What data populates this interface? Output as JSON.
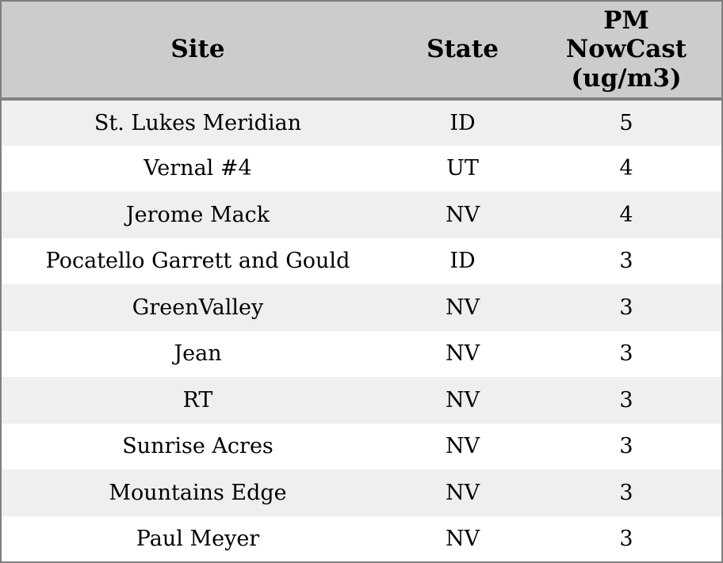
{
  "chart_data": {
    "type": "table",
    "columns": [
      "Site",
      "State",
      "PM NowCast (ug/m3)"
    ],
    "rows": [
      [
        "St. Lukes Meridian",
        "ID",
        5
      ],
      [
        "Vernal #4",
        "UT",
        4
      ],
      [
        "Jerome Mack",
        "NV",
        4
      ],
      [
        "Pocatello Garrett and Gould",
        "ID",
        3
      ],
      [
        "GreenValley",
        "NV",
        3
      ],
      [
        "Jean",
        "NV",
        3
      ],
      [
        "RT",
        "NV",
        3
      ],
      [
        "Sunrise Acres",
        "NV",
        3
      ],
      [
        "Mountains Edge",
        "NV",
        3
      ],
      [
        "Paul Meyer",
        "NV",
        3
      ]
    ]
  },
  "colors": {
    "header_bg": "#cccccc",
    "header_underline": "#828282",
    "outer_border": "#7f7f7f",
    "row_alt_bg": "#efefef",
    "row_bg": "#ffffff",
    "text": "#000000"
  }
}
